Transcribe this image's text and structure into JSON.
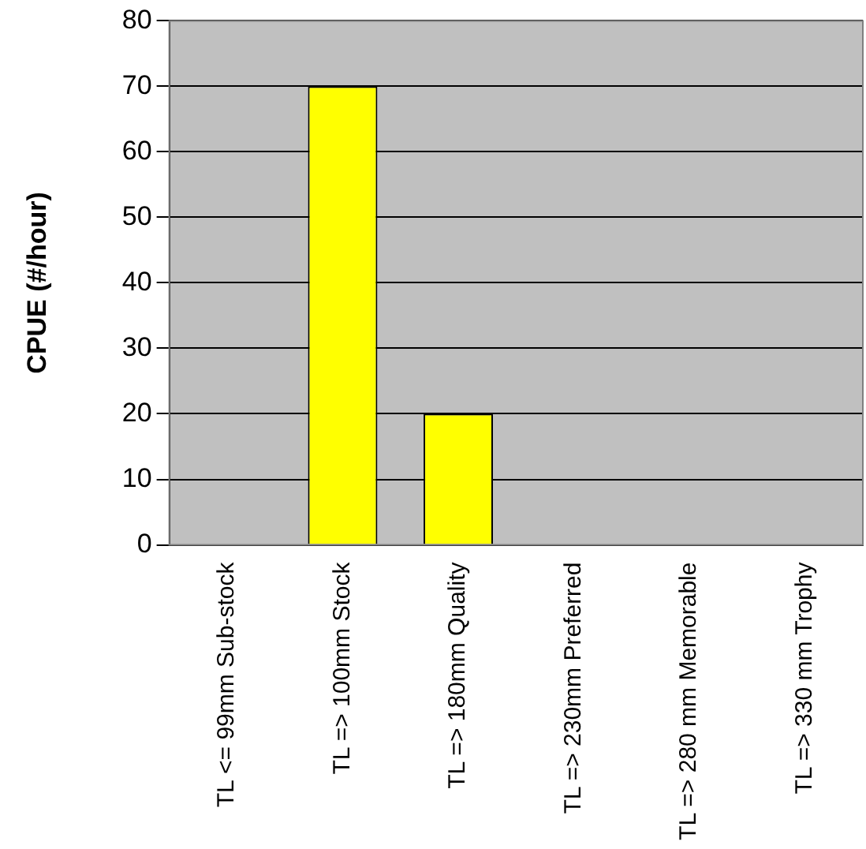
{
  "chart_data": {
    "type": "bar",
    "ylabel": "CPUE (#/hour)",
    "categories": [
      "TL <= 99mm Sub-stock",
      "TL => 100mm Stock",
      "TL => 180mm Quality",
      "TL => 230mm Preferred",
      "TL => 280 mm Memorable",
      "TL => 330 mm Trophy"
    ],
    "values": [
      0,
      70,
      20,
      0,
      0,
      0
    ],
    "color": "#ffff00",
    "ylim": [
      0,
      80
    ],
    "yticks": [
      0,
      10,
      20,
      30,
      40,
      50,
      60,
      70,
      80
    ],
    "grid": "y",
    "legend": false
  }
}
